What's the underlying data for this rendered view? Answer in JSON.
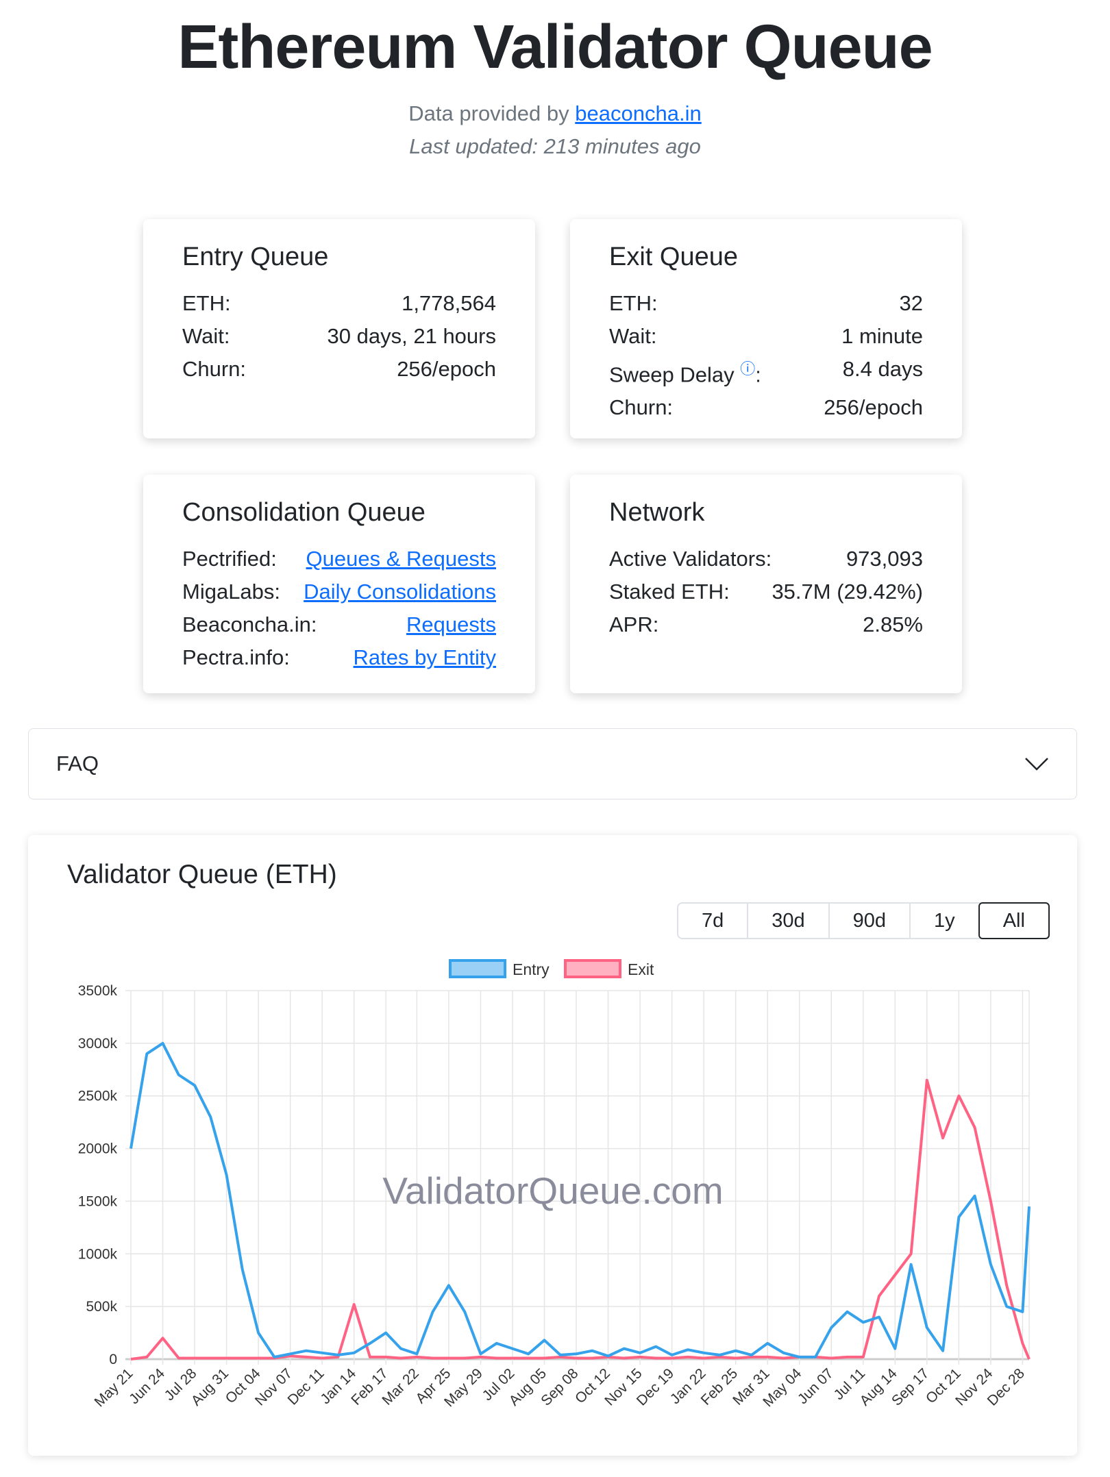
{
  "header": {
    "title": "Ethereum Validator Queue",
    "provided_prefix": "Data provided by",
    "provider_link": "beaconcha.in",
    "last_updated": "Last updated: 213 minutes ago"
  },
  "entry_queue": {
    "title": "Entry Queue",
    "rows": [
      {
        "label": "ETH:",
        "value": "1,778,564"
      },
      {
        "label": "Wait:",
        "value": "30 days, 21 hours"
      },
      {
        "label": "Churn:",
        "value": "256/epoch"
      }
    ]
  },
  "exit_queue": {
    "title": "Exit Queue",
    "rows": [
      {
        "label": "ETH:",
        "value": "32"
      },
      {
        "label": "Wait:",
        "value": "1 minute"
      },
      {
        "label": "Sweep Delay",
        "value": "8.4 days"
      },
      {
        "label": "Churn:",
        "value": "256/epoch"
      }
    ],
    "info_icon": "ⓘ"
  },
  "consolidation_queue": {
    "title": "Consolidation Queue",
    "rows": [
      {
        "label": "Pectrified:",
        "link": "Queues & Requests"
      },
      {
        "label": "MigaLabs:",
        "link": "Daily Consolidations"
      },
      {
        "label": "Beaconcha.in:",
        "link": "Requests"
      },
      {
        "label": "Pectra.info:",
        "link": "Rates by Entity"
      }
    ]
  },
  "network": {
    "title": "Network",
    "rows": [
      {
        "label": "Active Validators:",
        "value": "973,093"
      },
      {
        "label": "Staked ETH:",
        "value": "35.7M (29.42%)"
      },
      {
        "label": "APR:",
        "value": "2.85%"
      }
    ]
  },
  "faq": {
    "label": "FAQ",
    "icon": "chevron-down-icon"
  },
  "chart_card": {
    "title": "Validator Queue (ETH)",
    "ranges": [
      "7d",
      "30d",
      "90d",
      "1y",
      "All"
    ],
    "active_range": "All",
    "watermark": "ValidatorQueue.com"
  },
  "chart_data": {
    "type": "line",
    "title": "",
    "legend": "top",
    "grid": true,
    "ylim": [
      0,
      3500
    ],
    "y_unit": "k",
    "y_ticks": [
      "0",
      "500k",
      "1000k",
      "1500k",
      "2000k",
      "2500k",
      "3000k",
      "3500k"
    ],
    "x_ticks": [
      "May 21",
      "Jun 24",
      "Jul 28",
      "Aug 31",
      "Oct 04",
      "Nov 07",
      "Dec 11",
      "Jan 14",
      "Feb 17",
      "Mar 22",
      "Apr 25",
      "May 29",
      "Jul 02",
      "Aug 05",
      "Sep 08",
      "Oct 12",
      "Nov 15",
      "Dec 19",
      "Jan 22",
      "Feb 25",
      "Mar 31",
      "May 04",
      "Jun 07",
      "Jul 11",
      "Aug 14",
      "Sep 17",
      "Oct 21",
      "Nov 24",
      "Dec 28"
    ],
    "x": [
      "May 21",
      "Jun 07",
      "Jun 24",
      "Jul 11",
      "Jul 28",
      "Aug 14",
      "Aug 31",
      "Sep 17",
      "Oct 04",
      "Oct 21",
      "Nov 07",
      "Nov 24",
      "Dec 11",
      "Dec 28",
      "Jan 14",
      "Jan 31",
      "Feb 17",
      "Mar 05",
      "Mar 22",
      "Apr 08",
      "Apr 25",
      "May 12",
      "May 29",
      "Jun 15",
      "Jul 02",
      "Jul 19",
      "Aug 05",
      "Aug 22",
      "Sep 08",
      "Sep 25",
      "Oct 12",
      "Oct 29",
      "Nov 15",
      "Dec 02",
      "Dec 19",
      "Jan 05",
      "Jan 22",
      "Feb 08",
      "Feb 25",
      "Mar 14",
      "Mar 31",
      "Apr 17",
      "May 04",
      "May 21",
      "Jun 07",
      "Jun 24",
      "Jul 11",
      "Jul 28",
      "Aug 14",
      "Aug 31",
      "Sep 17",
      "Oct 04",
      "Oct 21",
      "Nov 07",
      "Nov 24",
      "Dec 11",
      "Dec 28",
      "Jan 04"
    ],
    "series": [
      {
        "name": "Entry",
        "color": "#36a2eb",
        "fill": "#9ad0f5",
        "values": [
          2000,
          2900,
          3000,
          2700,
          2600,
          2300,
          1750,
          850,
          250,
          20,
          50,
          80,
          60,
          40,
          60,
          150,
          250,
          100,
          50,
          450,
          700,
          450,
          50,
          150,
          100,
          50,
          180,
          40,
          50,
          80,
          30,
          100,
          60,
          120,
          40,
          90,
          60,
          40,
          80,
          40,
          150,
          60,
          20,
          20,
          300,
          450,
          350,
          400,
          100,
          900,
          300,
          80,
          1350,
          1550,
          900,
          500,
          450,
          1450
        ]
      },
      {
        "name": "Exit",
        "color": "#ff6384",
        "fill": "#ffb1c1",
        "values": [
          0,
          20,
          200,
          10,
          10,
          10,
          10,
          10,
          10,
          10,
          30,
          20,
          10,
          20,
          520,
          20,
          20,
          10,
          20,
          10,
          10,
          10,
          20,
          10,
          10,
          10,
          10,
          20,
          10,
          10,
          20,
          10,
          20,
          10,
          10,
          20,
          10,
          20,
          10,
          20,
          20,
          10,
          20,
          20,
          10,
          20,
          20,
          600,
          800,
          1000,
          2650,
          2100,
          2500,
          2200,
          1500,
          700,
          150,
          0
        ]
      }
    ]
  }
}
